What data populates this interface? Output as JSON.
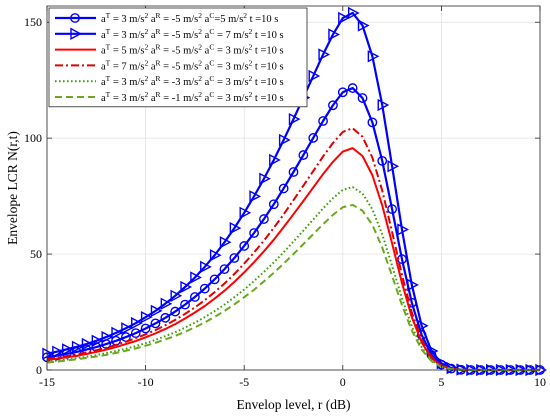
{
  "chart_data": {
    "type": "line",
    "xlabel": "Envelop level, r (dB)",
    "ylabel": "Envelope LCR N(r,t)",
    "xlim": [
      -15,
      10
    ],
    "ylim": [
      0,
      157
    ],
    "xticks": [
      -15,
      -10,
      -5,
      0,
      5,
      10
    ],
    "yticks": [
      0,
      50,
      100,
      150
    ],
    "grid": true,
    "legend_position": "top-left",
    "x": [
      -15,
      -14.5,
      -14,
      -13.5,
      -13,
      -12.5,
      -12,
      -11.5,
      -11,
      -10.5,
      -10,
      -9.5,
      -9,
      -8.5,
      -8,
      -7.5,
      -7,
      -6.5,
      -6,
      -5.5,
      -5,
      -4.5,
      -4,
      -3.5,
      -3,
      -2.5,
      -2,
      -1.5,
      -1,
      -0.5,
      0,
      0.5,
      1,
      1.5,
      2,
      2.5,
      3,
      3.5,
      4,
      4.5,
      5,
      5.5,
      6,
      6.5,
      7,
      7.5,
      8,
      8.5,
      9,
      9.5,
      10
    ],
    "series": [
      {
        "legend": "a^T = 3 m/s^2 a^R = -5 m/s^2 a^C = 5 m/s^2 t = 10 s",
        "color": "#0000ff",
        "dash": "solid",
        "marker": "circle",
        "width": 2.2,
        "values": [
          5.5,
          6.2,
          7.0,
          7.8,
          8.8,
          9.9,
          11.2,
          12.6,
          14.2,
          15.9,
          17.9,
          20.1,
          22.5,
          25.2,
          28.2,
          31.5,
          35.1,
          39.1,
          43.5,
          48.3,
          53.5,
          59.1,
          65.1,
          71.5,
          78.3,
          85.4,
          92.7,
          100.1,
          107.4,
          114.2,
          119.8,
          121.6,
          117.3,
          106.8,
          90.2,
          69.4,
          47.8,
          29.0,
          15.1,
          6.5,
          2.3,
          0.6,
          0.1,
          0,
          0,
          0,
          0,
          0,
          0,
          0,
          0
        ]
      },
      {
        "legend": "a^T = 3 m/s^2 a^R = -5 m/s^2 a^C = 7 m/s^2 t = 10 s",
        "color": "#0000ff",
        "dash": "solid",
        "marker": "triangle-right",
        "width": 2.2,
        "values": [
          7.0,
          7.9,
          8.9,
          10.0,
          11.2,
          12.6,
          14.2,
          16.0,
          18.0,
          20.2,
          22.8,
          25.5,
          28.6,
          32.0,
          35.8,
          39.9,
          44.5,
          49.5,
          55.1,
          61.2,
          67.8,
          74.9,
          82.5,
          90.6,
          99.2,
          108.2,
          117.5,
          126.8,
          136.1,
          144.7,
          151.8,
          154.0,
          148.6,
          135.3,
          114.3,
          87.9,
          60.6,
          36.7,
          19.1,
          8.2,
          2.9,
          0.8,
          0.2,
          0,
          0,
          0,
          0,
          0,
          0,
          0,
          0
        ]
      },
      {
        "legend": "a^T = 5 m/s^2 a^R = -5 m/s^2 a^C = 3 m/s^2 t = 10 s",
        "color": "#ff0000",
        "dash": "solid",
        "marker": "none",
        "width": 2.0,
        "values": [
          4.3,
          4.9,
          5.5,
          6.1,
          6.9,
          7.8,
          8.8,
          9.9,
          11.2,
          12.5,
          14.1,
          15.8,
          17.7,
          19.8,
          22.2,
          24.8,
          27.6,
          30.8,
          34.2,
          38.0,
          42.1,
          46.5,
          51.2,
          56.2,
          61.6,
          67.2,
          72.9,
          78.7,
          84.5,
          89.8,
          94.2,
          95.7,
          92.3,
          84.0,
          71.0,
          54.6,
          37.6,
          22.8,
          11.9,
          5.1,
          1.8,
          0.5,
          0.1,
          0,
          0,
          0,
          0,
          0,
          0,
          0,
          0
        ]
      },
      {
        "legend": "a^T = 7 m/s^2 a^R = -5 m/s^2 a^C = 3 m/s^2 t = 10 s",
        "color": "#e00000",
        "dash": "dashdot",
        "marker": "none",
        "width": 2.0,
        "values": [
          4.7,
          5.3,
          6.0,
          6.7,
          7.6,
          8.5,
          9.6,
          10.8,
          12.2,
          13.7,
          15.4,
          17.2,
          19.3,
          21.6,
          24.2,
          27.0,
          30.1,
          33.6,
          37.3,
          41.4,
          45.9,
          50.7,
          55.8,
          61.3,
          67.1,
          73.3,
          79.5,
          85.8,
          92.1,
          97.9,
          102.7,
          104.3,
          100.6,
          91.6,
          77.4,
          59.5,
          41.0,
          24.8,
          12.9,
          5.6,
          2.0,
          0.5,
          0.1,
          0,
          0,
          0,
          0,
          0,
          0,
          0,
          0
        ]
      },
      {
        "legend": "a^T = 3 m/s^2 a^R = -3 m/s^2 a^C = 3 m/s^2 t = 10 s",
        "color": "#3aa000",
        "dash": "dotted",
        "marker": "none",
        "width": 2.0,
        "values": [
          3.6,
          4.0,
          4.5,
          5.1,
          5.7,
          6.4,
          7.3,
          8.2,
          9.2,
          10.3,
          11.6,
          13.0,
          14.6,
          16.3,
          18.3,
          20.4,
          22.8,
          25.4,
          28.2,
          31.4,
          34.7,
          38.4,
          42.3,
          46.4,
          50.8,
          55.4,
          60.1,
          64.9,
          69.7,
          74.1,
          77.7,
          78.9,
          76.1,
          69.3,
          58.5,
          45.0,
          31.0,
          18.8,
          9.8,
          4.2,
          1.5,
          0.4,
          0.1,
          0,
          0,
          0,
          0,
          0,
          0,
          0,
          0
        ]
      },
      {
        "legend": "a^T = 3 m/s^2 a^R = -1 m/s^2 a^C = 3 m/s^2 t = 10 s",
        "color": "#6aa820",
        "dash": "dashed",
        "marker": "none",
        "width": 2.0,
        "values": [
          3.2,
          3.6,
          4.1,
          4.6,
          5.2,
          5.8,
          6.5,
          7.4,
          8.3,
          9.3,
          10.5,
          11.7,
          13.2,
          14.7,
          16.5,
          18.4,
          20.5,
          22.9,
          25.5,
          28.3,
          31.4,
          34.6,
          38.2,
          41.9,
          45.9,
          50.0,
          54.3,
          58.6,
          62.9,
          66.9,
          70.2,
          71.2,
          68.7,
          62.6,
          52.8,
          40.6,
          28.0,
          17.0,
          8.8,
          3.8,
          1.3,
          0.4,
          0.1,
          0,
          0,
          0,
          0,
          0,
          0,
          0,
          0
        ]
      }
    ],
    "legend_lines": [
      {
        "parts": [
          [
            "a",
            ""
          ],
          [
            "T",
            "sup"
          ],
          [
            " = 3 m/s",
            ""
          ],
          [
            "2",
            "sup"
          ],
          [
            " a",
            ""
          ],
          [
            "R",
            "sup"
          ],
          [
            " = -5 m/s",
            ""
          ],
          [
            "2",
            "sup"
          ],
          [
            " a",
            ""
          ],
          [
            "C",
            "sup"
          ],
          [
            "=5 m/s",
            ""
          ],
          [
            "2",
            "sup"
          ],
          [
            " t =10 s",
            ""
          ]
        ]
      },
      {
        "parts": [
          [
            "a",
            ""
          ],
          [
            "T",
            "sup"
          ],
          [
            " = 3 m/s",
            ""
          ],
          [
            "2",
            "sup"
          ],
          [
            " a",
            ""
          ],
          [
            "R",
            "sup"
          ],
          [
            " = -5 m/s",
            ""
          ],
          [
            "2",
            "sup"
          ],
          [
            " a",
            ""
          ],
          [
            "C",
            "sup"
          ],
          [
            " = 7 m/s",
            ""
          ],
          [
            "2",
            "sup"
          ],
          [
            " t =10 s",
            ""
          ]
        ]
      },
      {
        "parts": [
          [
            "a",
            ""
          ],
          [
            "T",
            "sup"
          ],
          [
            " = 5 m/s",
            ""
          ],
          [
            "2",
            "sup"
          ],
          [
            " a",
            ""
          ],
          [
            "R",
            "sup"
          ],
          [
            " = -5 m/s",
            ""
          ],
          [
            "2",
            "sup"
          ],
          [
            " a",
            ""
          ],
          [
            "C",
            "sup"
          ],
          [
            " = 3 m/s",
            ""
          ],
          [
            "2",
            "sup"
          ],
          [
            " t =10 s",
            ""
          ]
        ]
      },
      {
        "parts": [
          [
            "a",
            ""
          ],
          [
            "T",
            "sup"
          ],
          [
            " = 7 m/s",
            ""
          ],
          [
            "2",
            "sup"
          ],
          [
            " a",
            ""
          ],
          [
            "R",
            "sup"
          ],
          [
            " = -5 m/s",
            ""
          ],
          [
            "2",
            "sup"
          ],
          [
            " a",
            ""
          ],
          [
            "C",
            "sup"
          ],
          [
            " = 3 m/s",
            ""
          ],
          [
            "2",
            "sup"
          ],
          [
            " t =10 s",
            ""
          ]
        ]
      },
      {
        "parts": [
          [
            "a",
            ""
          ],
          [
            "T",
            "sup"
          ],
          [
            " = 3 m/s",
            ""
          ],
          [
            "2",
            "sup"
          ],
          [
            " a",
            ""
          ],
          [
            "R",
            "sup"
          ],
          [
            " = -3 m/s",
            ""
          ],
          [
            "2",
            "sup"
          ],
          [
            " a",
            ""
          ],
          [
            "C",
            "sup"
          ],
          [
            " = 3 m/s",
            ""
          ],
          [
            "2",
            "sup"
          ],
          [
            " t =10 s",
            ""
          ]
        ]
      },
      {
        "parts": [
          [
            "a",
            ""
          ],
          [
            "T",
            "sup"
          ],
          [
            " = 3 m/s",
            ""
          ],
          [
            "2",
            "sup"
          ],
          [
            " a",
            ""
          ],
          [
            "R",
            "sup"
          ],
          [
            " = -1 m/s",
            ""
          ],
          [
            "2",
            "sup"
          ],
          [
            " a",
            ""
          ],
          [
            "C",
            "sup"
          ],
          [
            " = 3 m/s",
            ""
          ],
          [
            "2",
            "sup"
          ],
          [
            " t =10 s",
            ""
          ]
        ]
      }
    ]
  }
}
